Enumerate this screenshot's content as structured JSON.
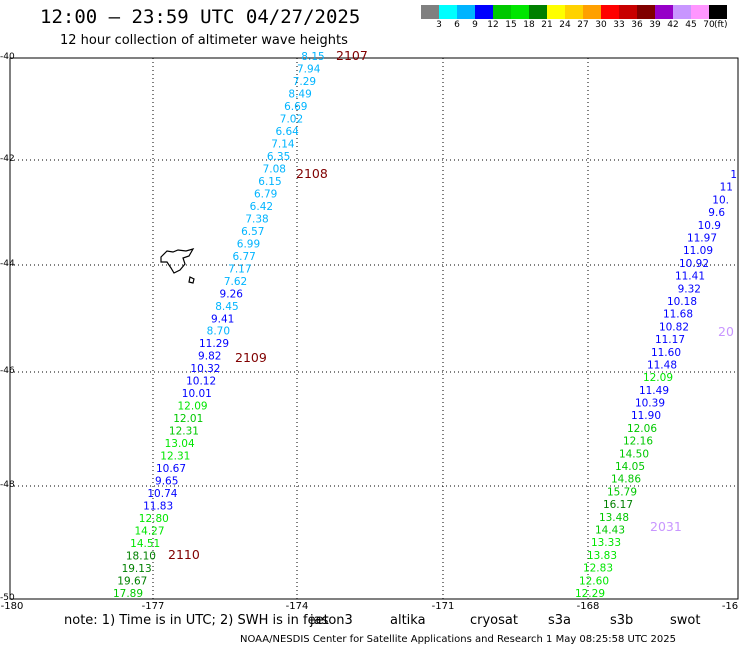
{
  "title": "12:00 – 23:59 UTC 04/27/2025",
  "subtitle": "12 hour collection of altimeter wave heights",
  "legend": {
    "colors": [
      "#808080",
      "#00ffff",
      "#00b4ff",
      "#0000ff",
      "#00c800",
      "#00e600",
      "#008000",
      "#ffff00",
      "#ffd200",
      "#ffa000",
      "#ff0000",
      "#c80000",
      "#800000",
      "#9600c8",
      "#c896ff",
      "#ff96ff",
      "#000000"
    ],
    "labels": [
      "3",
      "6",
      "9",
      "12",
      "15",
      "18",
      "21",
      "24",
      "27",
      "30",
      "33",
      "36",
      "39",
      "42",
      "45",
      "70"
    ],
    "unit": "(ft)"
  },
  "axes": {
    "y_ticks": [
      "-40",
      "-42",
      "-44",
      "-46",
      "-48",
      "-50"
    ],
    "x_ticks": [
      "-180",
      "-177",
      "-174",
      "-171",
      "-168",
      "-16"
    ]
  },
  "tracks": [
    {
      "points": [
        {
          "v": "8.15",
          "c": "#00b4ff"
        },
        {
          "v": "7.94",
          "c": "#00b4ff"
        },
        {
          "v": "7.29",
          "c": "#00b4ff"
        },
        {
          "v": "8.49",
          "c": "#00b4ff"
        },
        {
          "v": "6.69",
          "c": "#00b4ff"
        },
        {
          "v": "7.02",
          "c": "#00b4ff"
        },
        {
          "v": "6.64",
          "c": "#00b4ff"
        },
        {
          "v": "7.14",
          "c": "#00b4ff"
        },
        {
          "v": "6.35",
          "c": "#00b4ff"
        },
        {
          "v": "7.08",
          "c": "#00b4ff"
        },
        {
          "v": "6.15",
          "c": "#00b4ff"
        },
        {
          "v": "6.79",
          "c": "#00b4ff"
        },
        {
          "v": "6.42",
          "c": "#00b4ff"
        },
        {
          "v": "7.38",
          "c": "#00b4ff"
        },
        {
          "v": "6.57",
          "c": "#00b4ff"
        },
        {
          "v": "6.99",
          "c": "#00b4ff"
        },
        {
          "v": "6.77",
          "c": "#00b4ff"
        },
        {
          "v": "7.17",
          "c": "#00b4ff"
        },
        {
          "v": "7.62",
          "c": "#00b4ff"
        },
        {
          "v": "9.26",
          "c": "#0000ff"
        },
        {
          "v": "8.45",
          "c": "#00b4ff"
        },
        {
          "v": "9.41",
          "c": "#0000ff"
        },
        {
          "v": "8.70",
          "c": "#00b4ff"
        },
        {
          "v": "11.29",
          "c": "#0000ff"
        },
        {
          "v": "9.82",
          "c": "#0000ff"
        },
        {
          "v": "10.32",
          "c": "#0000ff"
        },
        {
          "v": "10.12",
          "c": "#0000ff"
        },
        {
          "v": "10.01",
          "c": "#0000ff"
        },
        {
          "v": "12.09",
          "c": "#00e600"
        },
        {
          "v": "12.01",
          "c": "#00c800"
        },
        {
          "v": "12.31",
          "c": "#00c800"
        },
        {
          "v": "13.04",
          "c": "#00e600"
        },
        {
          "v": "12.31",
          "c": "#00e600"
        },
        {
          "v": "10.67",
          "c": "#0000ff"
        },
        {
          "v": "9.65",
          "c": "#0000ff"
        },
        {
          "v": "10.74",
          "c": "#0000ff"
        },
        {
          "v": "11.83",
          "c": "#0000ff"
        },
        {
          "v": "12.80",
          "c": "#00e600"
        },
        {
          "v": "14.27",
          "c": "#00e600"
        },
        {
          "v": "14.51",
          "c": "#00e600"
        },
        {
          "v": "18.10",
          "c": "#008000"
        },
        {
          "v": "19.13",
          "c": "#008000"
        },
        {
          "v": "19.67",
          "c": "#008000"
        },
        {
          "v": "17.89",
          "c": "#00c800"
        }
      ]
    },
    {
      "points": [
        {
          "v": "1",
          "c": "#0000ff"
        },
        {
          "v": "11",
          "c": "#0000ff"
        },
        {
          "v": "10.",
          "c": "#0000ff"
        },
        {
          "v": "9.6",
          "c": "#0000ff"
        },
        {
          "v": "10.9",
          "c": "#0000ff"
        },
        {
          "v": "11.97",
          "c": "#0000ff"
        },
        {
          "v": "11.09",
          "c": "#0000ff"
        },
        {
          "v": "10.92",
          "c": "#0000ff"
        },
        {
          "v": "11.41",
          "c": "#0000ff"
        },
        {
          "v": "9.32",
          "c": "#0000ff"
        },
        {
          "v": "10.18",
          "c": "#0000ff"
        },
        {
          "v": "11.68",
          "c": "#0000ff"
        },
        {
          "v": "10.82",
          "c": "#0000ff"
        },
        {
          "v": "11.17",
          "c": "#0000ff"
        },
        {
          "v": "11.60",
          "c": "#0000ff"
        },
        {
          "v": "11.48",
          "c": "#0000ff"
        },
        {
          "v": "12.09",
          "c": "#00e600"
        },
        {
          "v": "11.49",
          "c": "#0000ff"
        },
        {
          "v": "10.39",
          "c": "#0000ff"
        },
        {
          "v": "11.90",
          "c": "#0000ff"
        },
        {
          "v": "12.06",
          "c": "#00c800"
        },
        {
          "v": "12.16",
          "c": "#00c800"
        },
        {
          "v": "14.50",
          "c": "#00c800"
        },
        {
          "v": "14.05",
          "c": "#00c800"
        },
        {
          "v": "14.86",
          "c": "#00c800"
        },
        {
          "v": "15.79",
          "c": "#00c800"
        },
        {
          "v": "16.17",
          "c": "#008000"
        },
        {
          "v": "13.48",
          "c": "#00c800"
        },
        {
          "v": "14.43",
          "c": "#00c800"
        },
        {
          "v": "13.33",
          "c": "#00e600"
        },
        {
          "v": "13.83",
          "c": "#00e600"
        },
        {
          "v": "12.83",
          "c": "#00e600"
        },
        {
          "v": "12.60",
          "c": "#00e600"
        },
        {
          "v": "12.29",
          "c": "#00e600"
        }
      ]
    }
  ],
  "time_labels": [
    {
      "text": "2107",
      "color": "#800000"
    },
    {
      "text": "2108",
      "color": "#800000"
    },
    {
      "text": "2109",
      "color": "#800000"
    },
    {
      "text": "2110",
      "color": "#800000"
    },
    {
      "text": "2031",
      "color": "#c896ff"
    },
    {
      "text": "20",
      "color": "#c896ff"
    }
  ],
  "note": "note: 1) Time is in UTC; 2) SWH is in feet",
  "satellites": [
    {
      "name": "jason3",
      "color": "#008000"
    },
    {
      "name": "altika",
      "color": "#ffa000"
    },
    {
      "name": "cryosat",
      "color": "#ff0000"
    },
    {
      "name": "s3a",
      "color": "#c80000"
    },
    {
      "name": "s3b",
      "color": "#c896ff"
    },
    {
      "name": "swot",
      "color": "#ff96ff"
    }
  ],
  "footer": "NOAA/NESDIS Center for Satellite Applications and Research    1 May 08:25:58 UTC 2025"
}
